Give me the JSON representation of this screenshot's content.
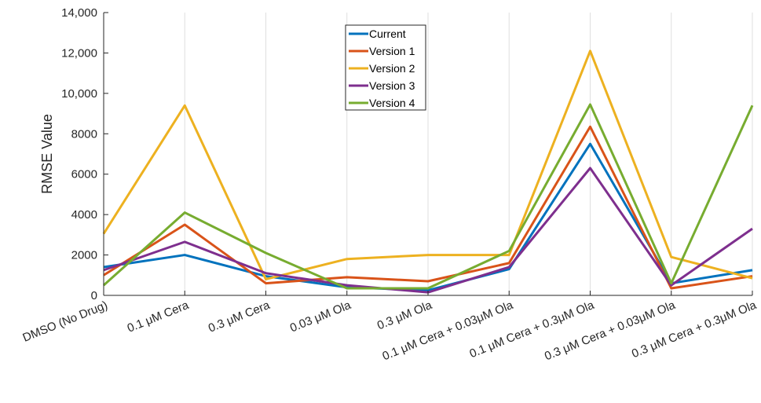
{
  "chart_data": {
    "type": "line",
    "title": "",
    "xlabel": "",
    "ylabel": "RMSE Value",
    "ylim": [
      0,
      14000
    ],
    "yticks": [
      "0",
      "2000",
      "4000",
      "6000",
      "8000",
      "10,000",
      "12,000",
      "14,000"
    ],
    "ytick_values": [
      0,
      2000,
      4000,
      6000,
      8000,
      10000,
      12000,
      14000
    ],
    "grid": "vertical",
    "legend_position": "top-center",
    "categories": [
      "DMSO (No Drug)",
      "0.1 μM Cera",
      "0.3 μM Cera",
      "0.03 μM Ola",
      "0.3 μM Ola",
      "0.1 μM Cera + 0.03μM Ola",
      "0.1 μM Cera + 0.3μM Ola",
      "0.3 μM Cera + 0.03μM Ola",
      "0.3 μM Cera + 0.3μM Ola"
    ],
    "series": [
      {
        "name": "Current",
        "color": "#0072BD",
        "values": [
          1400,
          2000,
          950,
          400,
          250,
          1300,
          7500,
          600,
          1250
        ]
      },
      {
        "name": "Version 1",
        "color": "#D95319",
        "values": [
          1000,
          3500,
          600,
          900,
          700,
          1600,
          8350,
          350,
          950
        ]
      },
      {
        "name": "Version 2",
        "color": "#EDB120",
        "values": [
          3050,
          9400,
          800,
          1800,
          2000,
          2000,
          12100,
          1900,
          850
        ]
      },
      {
        "name": "Version 3",
        "color": "#7E2F8E",
        "values": [
          1250,
          2650,
          1100,
          500,
          150,
          1400,
          6300,
          500,
          3300
        ]
      },
      {
        "name": "Version 4",
        "color": "#77AC30",
        "values": [
          500,
          4100,
          2100,
          350,
          350,
          2200,
          9450,
          600,
          9400
        ]
      }
    ]
  }
}
